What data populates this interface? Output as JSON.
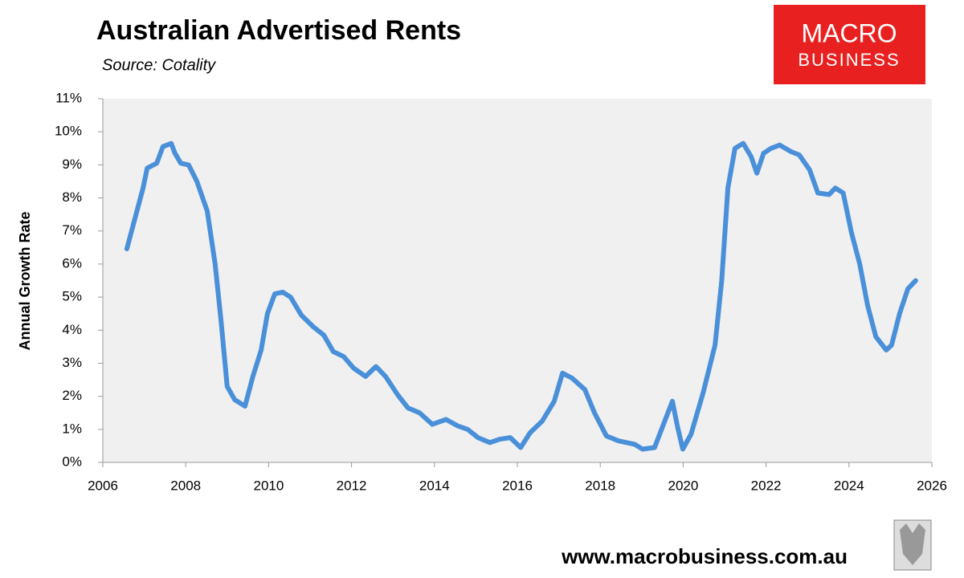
{
  "chart_data": {
    "type": "line",
    "title": "Australian Advertised Rents",
    "subtitle": "Source: Cotality",
    "y_label": "Annual Growth Rate",
    "color": "#4a90d9",
    "x": [
      2006.58,
      2006.78,
      2006.97,
      2007.07,
      2007.3,
      2007.45,
      2007.65,
      2007.74,
      2007.88,
      2008.07,
      2008.27,
      2008.52,
      2008.71,
      2008.85,
      2009.0,
      2009.18,
      2009.43,
      2009.62,
      2009.82,
      2009.97,
      2010.15,
      2010.34,
      2010.53,
      2010.79,
      2011.08,
      2011.33,
      2011.56,
      2011.81,
      2012.05,
      2012.34,
      2012.59,
      2012.82,
      2013.11,
      2013.36,
      2013.64,
      2013.95,
      2014.28,
      2014.57,
      2014.8,
      2015.05,
      2015.34,
      2015.57,
      2015.83,
      2016.08,
      2016.31,
      2016.6,
      2016.89,
      2017.09,
      2017.32,
      2017.63,
      2017.86,
      2018.15,
      2018.44,
      2018.83,
      2019.02,
      2019.31,
      2019.51,
      2019.74,
      2019.86,
      2019.99,
      2020.19,
      2020.48,
      2020.77,
      2020.93,
      2021.08,
      2021.25,
      2021.45,
      2021.64,
      2021.78,
      2021.94,
      2022.12,
      2022.33,
      2022.6,
      2022.8,
      2023.05,
      2023.25,
      2023.52,
      2023.67,
      2023.86,
      2024.06,
      2024.26,
      2024.45,
      2024.65,
      2024.9,
      2025.03,
      2025.22,
      2025.42,
      2025.61
    ],
    "values": [
      6.46,
      7.4,
      8.3,
      8.9,
      9.05,
      9.55,
      9.65,
      9.35,
      9.05,
      9.0,
      8.5,
      7.6,
      6.0,
      4.3,
      2.3,
      1.9,
      1.7,
      2.6,
      3.4,
      4.5,
      5.1,
      5.15,
      5.0,
      4.45,
      4.1,
      3.85,
      3.35,
      3.2,
      2.85,
      2.6,
      2.9,
      2.6,
      2.05,
      1.65,
      1.5,
      1.15,
      1.3,
      1.1,
      1.0,
      0.75,
      0.6,
      0.7,
      0.75,
      0.45,
      0.9,
      1.25,
      1.85,
      2.7,
      2.55,
      2.2,
      1.5,
      0.8,
      0.65,
      0.55,
      0.4,
      0.45,
      1.1,
      1.85,
      1.1,
      0.4,
      0.85,
      2.1,
      3.55,
      5.5,
      8.3,
      9.5,
      9.65,
      9.25,
      8.75,
      9.35,
      9.5,
      9.6,
      9.4,
      9.3,
      8.85,
      8.15,
      8.1,
      8.3,
      8.15,
      6.95,
      6.0,
      4.75,
      3.8,
      3.4,
      3.55,
      4.5,
      5.25,
      5.5
    ],
    "xlim": [
      2006,
      2026
    ],
    "xticks": [
      2006,
      2008,
      2010,
      2012,
      2014,
      2016,
      2018,
      2020,
      2022,
      2024,
      2026
    ],
    "ylim": [
      0,
      11
    ],
    "yticks": [
      {
        "value": 0,
        "label": "0%"
      },
      {
        "value": 1,
        "label": "1%"
      },
      {
        "value": 2,
        "label": "2%"
      },
      {
        "value": 3,
        "label": "3%"
      },
      {
        "value": 4,
        "label": "4%"
      },
      {
        "value": 5,
        "label": "5%"
      },
      {
        "value": 6,
        "label": "6%"
      },
      {
        "value": 7,
        "label": "7%"
      },
      {
        "value": 8,
        "label": "8%"
      },
      {
        "value": 9,
        "label": "9%"
      },
      {
        "value": 10,
        "label": "10%"
      },
      {
        "value": 11,
        "label": "11%"
      }
    ]
  },
  "logo": {
    "line1": "MACRO",
    "line2": "BUSINESS"
  },
  "footer": {
    "url": "www.macrobusiness.com.au"
  }
}
